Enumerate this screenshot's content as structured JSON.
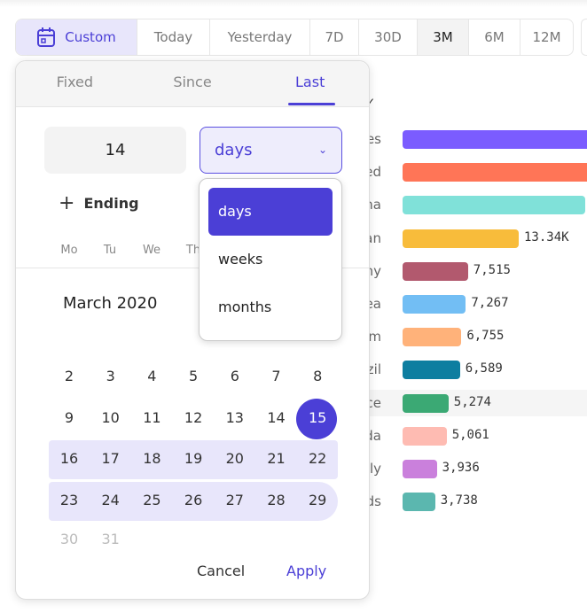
{
  "range_bar": {
    "custom": "Custom",
    "options": [
      "Today",
      "Yesterday",
      "7D",
      "30D",
      "3M",
      "6M",
      "12M"
    ],
    "active": "3M"
  },
  "popover": {
    "tabs": [
      "Fixed",
      "Since",
      "Last"
    ],
    "active_tab": "Last",
    "amount": "14",
    "unit": "days",
    "ending_label": "Ending",
    "weekdays": [
      "Mo",
      "Tu",
      "We",
      "Th"
    ],
    "month_label": "March 2020",
    "weeks": [
      [
        "2",
        "3",
        "4",
        "5",
        "6",
        "7",
        "8"
      ],
      [
        "9",
        "10",
        "11",
        "12",
        "13",
        "14",
        "15"
      ],
      [
        "16",
        "17",
        "18",
        "19",
        "20",
        "21",
        "22"
      ],
      [
        "23",
        "24",
        "25",
        "26",
        "27",
        "28",
        "29"
      ],
      [
        "30",
        "31"
      ]
    ],
    "selected_day": "15",
    "cancel": "Cancel",
    "apply": "Apply"
  },
  "unit_dropdown": {
    "options": [
      "days",
      "weeks",
      "months"
    ],
    "selected": "days"
  },
  "chart": {
    "rows": [
      {
        "label": "es",
        "value": null,
        "color": "#7b5cff"
      },
      {
        "label": "ed",
        "value": null,
        "color": "#ff7557"
      },
      {
        "label": "na",
        "value": null,
        "color": "#80e1d9"
      },
      {
        "label": "an",
        "value": 13340,
        "display": "13.34K",
        "color": "#f8bc3b"
      },
      {
        "label": "ny",
        "value": 7515,
        "display": "7,515",
        "color": "#b2596e"
      },
      {
        "label": "ea",
        "value": 7267,
        "display": "7,267",
        "color": "#72bef4"
      },
      {
        "label": "m",
        "value": 6755,
        "display": "6,755",
        "color": "#ffb27a"
      },
      {
        "label": "zil",
        "value": 6589,
        "display": "6,589",
        "color": "#0d7ea0"
      },
      {
        "label": "ce",
        "value": 5274,
        "display": "5,274",
        "color": "#3ba974"
      },
      {
        "label": "da",
        "value": 5061,
        "display": "5,061",
        "color": "#febbb2"
      },
      {
        "label": "aly",
        "value": 3936,
        "display": "3,936",
        "color": "#ca80dc"
      },
      {
        "label": "ds",
        "value": 3738,
        "display": "3,738",
        "color": "#5bb7af"
      }
    ]
  }
}
